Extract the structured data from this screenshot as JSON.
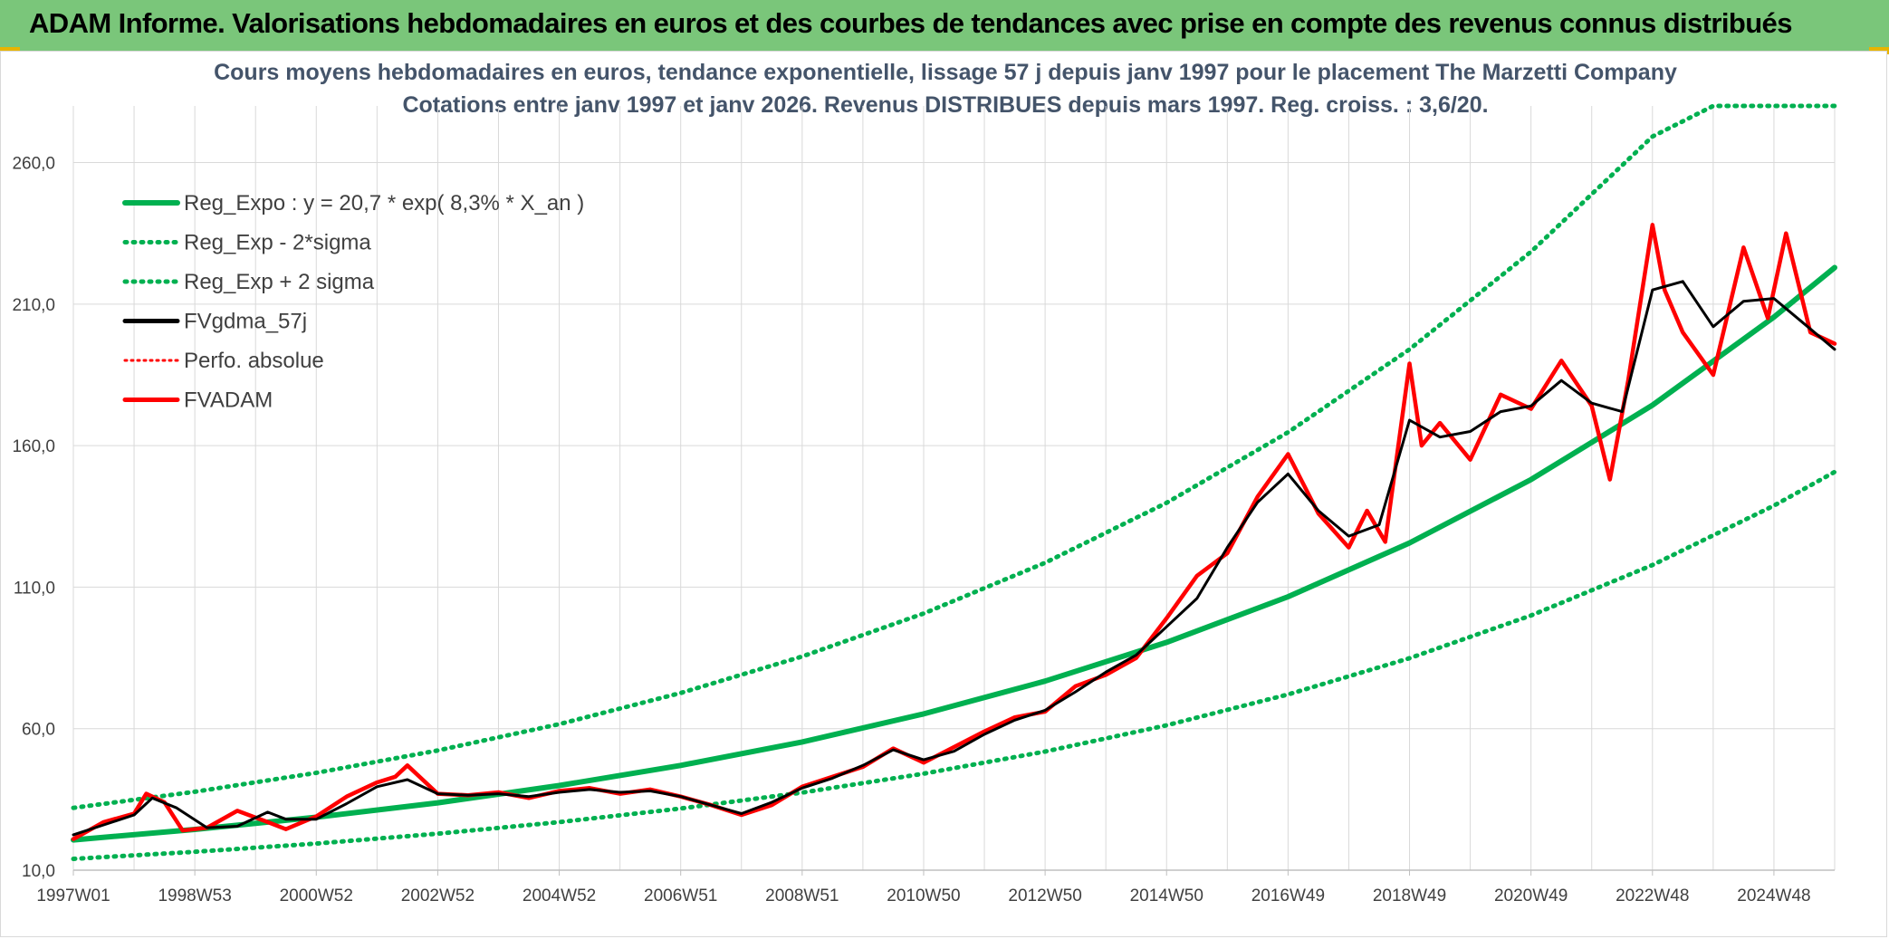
{
  "header": {
    "title": "ADAM Informe. Valorisations hebdomadaires en euros et des courbes de tendances avec prise en compte des revenus connus distribués"
  },
  "colors": {
    "header_bg": "#7ac67a",
    "trend": "#00b050",
    "smooth": "#000000",
    "price": "#ff0000",
    "grid": "#d9d9d9"
  },
  "chart_data": {
    "type": "line",
    "title": "Cours moyens hebdomadaires en euros, tendance exponentielle, lissage 57 j depuis janv 1997 pour le placement The Marzetti Company",
    "subtitle": "Cotations entre janv 1997 et janv 2026. Revenus DISTRIBUES depuis mars 1997. Reg. croiss. : 3,6/20.",
    "xlabel": "",
    "ylabel": "",
    "x_range": [
      1997.0,
      2026.0
    ],
    "ylim": [
      10,
      280
    ],
    "y_ticks": [
      "10,0",
      "60,0",
      "110,0",
      "160,0",
      "210,0",
      "260,0"
    ],
    "y_tick_values": [
      10,
      60,
      110,
      160,
      210,
      260
    ],
    "x_ticks": [
      "1997W01",
      "1998W53",
      "2000W52",
      "2002W52",
      "2004W52",
      "2006W51",
      "2008W51",
      "2010W50",
      "2012W50",
      "2014W50",
      "2016W49",
      "2018W49",
      "2020W49",
      "2022W48",
      "2024W48"
    ],
    "x_tick_positions": [
      1997.0,
      1999.0,
      2001.0,
      2003.0,
      2005.0,
      2007.0,
      2009.0,
      2011.0,
      2013.0,
      2015.0,
      2017.0,
      2019.0,
      2021.0,
      2023.0,
      2025.0
    ],
    "legend": {
      "position": "top-left",
      "entries": [
        "Reg_Expo : y = 20,7 * exp( 8,3% *  X_an )",
        "Reg_Exp - 2*sigma",
        "Reg_Exp + 2 sigma",
        "FVgdma_57j",
        "Perfo. absolue",
        "FVADAM"
      ]
    },
    "grid": true,
    "series": [
      {
        "name": "Reg_Expo : y = 20,7 * exp( 8,3% *  X_an )",
        "style": "solid-green",
        "x": [
          1997,
          1999,
          2001,
          2003,
          2005,
          2007,
          2009,
          2011,
          2013,
          2015,
          2017,
          2019,
          2021,
          2023,
          2025,
          2026
        ],
        "values": [
          20.7,
          24.4,
          28.7,
          33.8,
          39.9,
          47.0,
          55.3,
          65.2,
          76.8,
          90.5,
          106.6,
          125.6,
          148.0,
          174.3,
          205.4,
          222.9
        ]
      },
      {
        "name": "Reg_Exp - 2*sigma",
        "style": "dotted-green",
        "x": [
          1997,
          1999,
          2001,
          2003,
          2005,
          2007,
          2009,
          2011,
          2013,
          2015,
          2017,
          2019,
          2021,
          2023,
          2025,
          2026
        ],
        "values": [
          14.0,
          16.5,
          19.4,
          22.9,
          27.0,
          31.8,
          37.4,
          44.1,
          51.9,
          61.2,
          72.1,
          84.9,
          100.0,
          117.8,
          138.8,
          150.7
        ]
      },
      {
        "name": "Reg_Exp + 2 sigma",
        "style": "dotted-green",
        "x": [
          1997,
          1999,
          2001,
          2003,
          2005,
          2007,
          2009,
          2011,
          2013,
          2015,
          2017,
          2019,
          2021,
          2023,
          2024,
          2025,
          2026
        ],
        "values": [
          32.0,
          37.7,
          44.4,
          52.3,
          61.6,
          72.6,
          85.5,
          100.7,
          118.6,
          139.8,
          164.7,
          194.0,
          228.5,
          269.2,
          280.0,
          280.0,
          280.0
        ]
      },
      {
        "name": "FVgdma_57j",
        "style": "solid-black",
        "x": [
          1997.0,
          1997.5,
          1998.0,
          1998.3,
          1998.7,
          1999.2,
          1999.7,
          2000.2,
          2000.5,
          2001.0,
          2001.5,
          2002.0,
          2002.5,
          2003.0,
          2003.5,
          2004.0,
          2004.5,
          2005.0,
          2005.5,
          2006.0,
          2006.5,
          2007.0,
          2007.5,
          2008.0,
          2008.5,
          2009.0,
          2009.5,
          2010.0,
          2010.5,
          2011.0,
          2011.5,
          2012.0,
          2012.5,
          2013.0,
          2013.5,
          2014.0,
          2014.5,
          2015.0,
          2015.5,
          2016.0,
          2016.5,
          2017.0,
          2017.5,
          2018.0,
          2018.5,
          2019.0,
          2019.5,
          2020.0,
          2020.5,
          2021.0,
          2021.5,
          2022.0,
          2022.5,
          2023.0,
          2023.5,
          2024.0,
          2024.5,
          2025.0,
          2025.5,
          2026.0
        ],
        "values": [
          22.5,
          26.0,
          29.5,
          35.5,
          32.0,
          25.0,
          25.5,
          30.5,
          28.0,
          28.0,
          33.5,
          39.5,
          42.0,
          37.0,
          36.5,
          37.0,
          36.0,
          37.5,
          38.5,
          37.5,
          38.0,
          36.0,
          33.0,
          30.0,
          34.0,
          39.0,
          42.5,
          47.0,
          52.5,
          49.0,
          52.0,
          58.0,
          63.0,
          66.5,
          73.0,
          80.0,
          86.0,
          96.0,
          106.0,
          124.0,
          140.0,
          150.0,
          137.0,
          128.0,
          132.0,
          169.0,
          163.0,
          165.0,
          172.0,
          174.0,
          183.0,
          175.0,
          172.0,
          215.0,
          218.0,
          202.0,
          211.0,
          212.0,
          203.0,
          194.0
        ]
      },
      {
        "name": "FVADAM",
        "style": "solid-red",
        "x": [
          1997.0,
          1997.5,
          1998.0,
          1998.2,
          1998.5,
          1998.8,
          1999.2,
          1999.7,
          2000.2,
          2000.5,
          2001.0,
          2001.5,
          2002.0,
          2002.3,
          2002.5,
          2003.0,
          2003.5,
          2004.0,
          2004.5,
          2005.0,
          2005.5,
          2006.0,
          2006.5,
          2007.0,
          2007.5,
          2008.0,
          2008.5,
          2009.0,
          2009.5,
          2010.0,
          2010.5,
          2011.0,
          2011.5,
          2012.0,
          2012.5,
          2013.0,
          2013.5,
          2014.0,
          2014.5,
          2015.0,
          2015.5,
          2016.0,
          2016.5,
          2017.0,
          2017.5,
          2018.0,
          2018.3,
          2018.6,
          2019.0,
          2019.2,
          2019.5,
          2020.0,
          2020.5,
          2021.0,
          2021.5,
          2022.0,
          2022.3,
          2022.6,
          2023.0,
          2023.2,
          2023.5,
          2024.0,
          2024.5,
          2024.9,
          2025.2,
          2025.6,
          2026.0
        ],
        "values": [
          21.0,
          27.0,
          30.0,
          37.0,
          34.0,
          24.0,
          25.0,
          31.0,
          27.0,
          24.5,
          29.0,
          36.0,
          41.0,
          43.0,
          47.0,
          37.0,
          36.5,
          37.5,
          35.5,
          38.0,
          39.0,
          37.0,
          38.5,
          36.0,
          33.0,
          29.5,
          33.0,
          39.5,
          43.0,
          46.5,
          53.0,
          48.0,
          53.5,
          59.0,
          64.0,
          66.0,
          75.0,
          79.0,
          85.0,
          99.0,
          114.0,
          122.0,
          142.0,
          157.0,
          136.0,
          124.0,
          137.0,
          126.0,
          189.0,
          160.0,
          168.0,
          155.0,
          178.0,
          173.0,
          190.0,
          174.0,
          148.0,
          183.0,
          238.0,
          215.0,
          200.0,
          185.0,
          230.0,
          205.0,
          235.0,
          200.0,
          196.0
        ]
      }
    ]
  }
}
